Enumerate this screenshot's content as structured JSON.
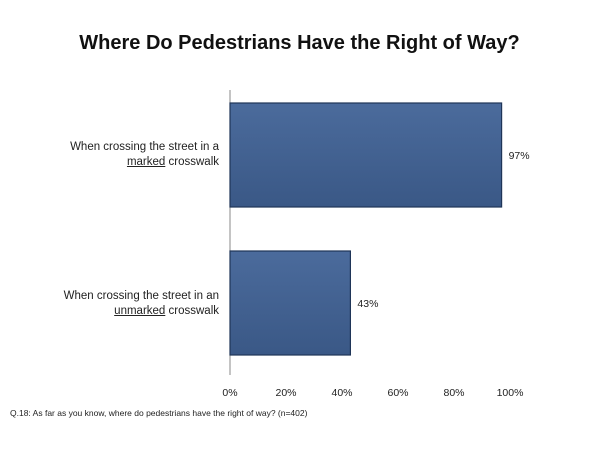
{
  "chart_data": {
    "type": "bar",
    "orientation": "horizontal",
    "title": "Where Do Pedestrians Have the Right of Way?",
    "categories": [
      {
        "before": "When crossing the street in a",
        "emphasis": "marked",
        "after": "crosswalk"
      },
      {
        "before": "When crossing the street in an",
        "emphasis": "unmarked",
        "after": "crosswalk"
      }
    ],
    "values": [
      97,
      43
    ],
    "value_labels": [
      "97%",
      "43%"
    ],
    "xlim": [
      0,
      100
    ],
    "x_ticks": [
      0,
      20,
      40,
      60,
      80,
      100
    ],
    "x_tick_labels": [
      "0%",
      "20%",
      "40%",
      "60%",
      "80%",
      "100%"
    ],
    "grid": false,
    "bar_color": "#3f5f8f",
    "bar_edge_color": "#1f3558"
  },
  "footnote": "Q.18: As far as you know, where do pedestrians have the right of way? (n=402)"
}
